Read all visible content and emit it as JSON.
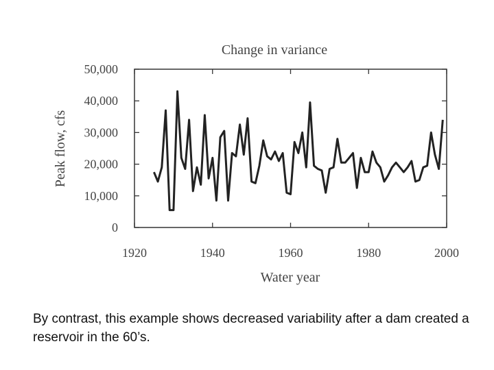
{
  "chart_data": {
    "type": "line",
    "title": "Change in variance",
    "xlabel": "Water year",
    "ylabel": "Peak flow, cfs",
    "xlim": [
      1920,
      2000
    ],
    "ylim": [
      0,
      50000
    ],
    "xticks": [
      1920,
      1940,
      1960,
      1980,
      2000
    ],
    "yticks": [
      0,
      10000,
      20000,
      30000,
      40000,
      50000
    ],
    "ytick_labels": [
      "0",
      "10,000",
      "20,000",
      "30,000",
      "40,000",
      "50,000"
    ],
    "grid": false,
    "series": [
      {
        "color": "#222222",
        "points": [
          [
            1925,
            17500
          ],
          [
            1926,
            14500
          ],
          [
            1927,
            19000
          ],
          [
            1928,
            37000
          ],
          [
            1929,
            5500
          ],
          [
            1930,
            5500
          ],
          [
            1931,
            43000
          ],
          [
            1932,
            22000
          ],
          [
            1933,
            18500
          ],
          [
            1934,
            34000
          ],
          [
            1935,
            11500
          ],
          [
            1936,
            19000
          ],
          [
            1937,
            13500
          ],
          [
            1938,
            35500
          ],
          [
            1939,
            15500
          ],
          [
            1940,
            22000
          ],
          [
            1941,
            8500
          ],
          [
            1942,
            28500
          ],
          [
            1943,
            30500
          ],
          [
            1944,
            8500
          ],
          [
            1945,
            23500
          ],
          [
            1946,
            22500
          ],
          [
            1947,
            32500
          ],
          [
            1948,
            23000
          ],
          [
            1949,
            34500
          ],
          [
            1950,
            14500
          ],
          [
            1951,
            14000
          ],
          [
            1952,
            19500
          ],
          [
            1953,
            27500
          ],
          [
            1954,
            22500
          ],
          [
            1955,
            21500
          ],
          [
            1956,
            24000
          ],
          [
            1957,
            21000
          ],
          [
            1958,
            23500
          ],
          [
            1959,
            11000
          ],
          [
            1960,
            10500
          ],
          [
            1961,
            27000
          ],
          [
            1962,
            23500
          ],
          [
            1963,
            30000
          ],
          [
            1964,
            19000
          ],
          [
            1965,
            39500
          ],
          [
            1966,
            19500
          ],
          [
            1967,
            18500
          ],
          [
            1968,
            18000
          ],
          [
            1969,
            11000
          ],
          [
            1970,
            18500
          ],
          [
            1971,
            19000
          ],
          [
            1972,
            28000
          ],
          [
            1973,
            20500
          ],
          [
            1974,
            20500
          ],
          [
            1975,
            22000
          ],
          [
            1976,
            23500
          ],
          [
            1977,
            12500
          ],
          [
            1978,
            22000
          ],
          [
            1979,
            17500
          ],
          [
            1980,
            17500
          ],
          [
            1981,
            24000
          ],
          [
            1982,
            20500
          ],
          [
            1983,
            19000
          ],
          [
            1984,
            14500
          ],
          [
            1985,
            16500
          ],
          [
            1986,
            19000
          ],
          [
            1987,
            20500
          ],
          [
            1988,
            19000
          ],
          [
            1989,
            17500
          ],
          [
            1990,
            19000
          ],
          [
            1991,
            21000
          ],
          [
            1992,
            14500
          ],
          [
            1993,
            15000
          ],
          [
            1994,
            19000
          ],
          [
            1995,
            19500
          ],
          [
            1996,
            30000
          ],
          [
            1997,
            23000
          ],
          [
            1998,
            18500
          ],
          [
            1999,
            34000
          ]
        ]
      }
    ]
  },
  "caption": "By contrast, this example shows decreased variability after a dam created a reservoir in the 60’s."
}
